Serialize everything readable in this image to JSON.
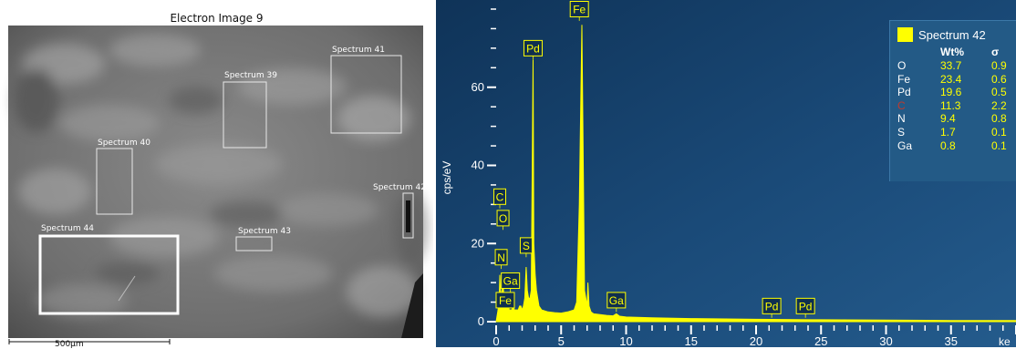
{
  "sem": {
    "title": "Electron Image 9",
    "scale_label": "500µm",
    "regions": [
      {
        "label": "Spectrum 41"
      },
      {
        "label": "Spectrum 39"
      },
      {
        "label": "Spectrum 40"
      },
      {
        "label": "Spectrum 42"
      },
      {
        "label": "Spectrum 44"
      },
      {
        "label": "Spectrum 43"
      }
    ]
  },
  "colors": {
    "spectrum": "#ffff00",
    "plot_background": "#1a4a78",
    "table_background": "#235a86",
    "marker_box": "#0f2f4f"
  },
  "chart_data": {
    "type": "line",
    "title": "",
    "xlabel": "ke",
    "ylabel": "cps/eV",
    "xlim": [
      0,
      40
    ],
    "ylim": [
      0,
      80
    ],
    "x_ticks": [
      0,
      5,
      10,
      15,
      20,
      25,
      30,
      35
    ],
    "y_ticks": [
      0,
      20,
      40,
      60
    ],
    "grid": false,
    "series": [
      {
        "name": "Spectrum 42",
        "x": [
          0.0,
          0.15,
          0.25,
          0.28,
          0.35,
          0.45,
          0.53,
          0.6,
          0.7,
          0.8,
          0.9,
          1.0,
          1.1,
          1.2,
          1.3,
          1.4,
          1.5,
          1.6,
          1.7,
          1.8,
          1.9,
          2.0,
          2.1,
          2.2,
          2.31,
          2.4,
          2.5,
          2.6,
          2.7,
          2.84,
          2.9,
          3.0,
          3.1,
          3.2,
          3.3,
          3.5,
          4.0,
          4.5,
          5.0,
          5.5,
          6.0,
          6.2,
          6.4,
          6.6,
          6.8,
          7.0,
          7.06,
          7.15,
          7.3,
          7.5,
          8.0,
          8.5,
          9.0,
          9.25,
          9.5,
          10.0,
          12.0,
          15.0,
          20.0,
          25.0,
          30.0,
          35.0,
          40.0
        ],
        "values": [
          0,
          3,
          8,
          12,
          6,
          8,
          10,
          6,
          5,
          4,
          5,
          3,
          3,
          3,
          4,
          3,
          3,
          3,
          3,
          4,
          4,
          3,
          4,
          6,
          14,
          8,
          6,
          6,
          8,
          67,
          20,
          12,
          8,
          6,
          4,
          3,
          2.5,
          2.3,
          2.2,
          2.5,
          3,
          5,
          30,
          76,
          8,
          4,
          10,
          4,
          2.5,
          2,
          1.8,
          1.6,
          1.5,
          2,
          1.4,
          1.2,
          1,
          0.8,
          0.6,
          0.5,
          0.4,
          0.3,
          0.3
        ]
      }
    ],
    "peak_labels": [
      {
        "text": "Fe",
        "x": 6.4,
        "level": 80
      },
      {
        "text": "Pd",
        "x": 2.84,
        "level": 70
      },
      {
        "text": "C",
        "x": 0.28,
        "level": 32
      },
      {
        "text": "O",
        "x": 0.53,
        "level": 26.5
      },
      {
        "text": "S",
        "x": 2.31,
        "level": 19.5
      },
      {
        "text": "N",
        "x": 0.39,
        "level": 16.5
      },
      {
        "text": "Ga",
        "x": 1.1,
        "level": 10.5
      },
      {
        "text": "Fe",
        "x": 0.7,
        "level": 5.5
      },
      {
        "text": "Ga",
        "x": 9.25,
        "level": 5.5
      },
      {
        "text": "Pd",
        "x": 21.2,
        "level": 4
      },
      {
        "text": "Pd",
        "x": 23.8,
        "level": 4
      }
    ]
  },
  "results": {
    "legend_label": "Spectrum 42",
    "headers": {
      "element": "",
      "wt": "Wt%",
      "sigma": "σ"
    },
    "rows": [
      {
        "el": "O",
        "wt": "33.7",
        "sigma": "0.9",
        "color": "#ffffff"
      },
      {
        "el": "Fe",
        "wt": "23.4",
        "sigma": "0.6",
        "color": "#ffffff"
      },
      {
        "el": "Pd",
        "wt": "19.6",
        "sigma": "0.5",
        "color": "#ffffff"
      },
      {
        "el": "C",
        "wt": "11.3",
        "sigma": "2.2",
        "color": "#c0392b"
      },
      {
        "el": "N",
        "wt": "9.4",
        "sigma": "0.8",
        "color": "#ffffff"
      },
      {
        "el": "S",
        "wt": "1.7",
        "sigma": "0.1",
        "color": "#ffffff"
      },
      {
        "el": "Ga",
        "wt": "0.8",
        "sigma": "0.1",
        "color": "#ffffff"
      }
    ]
  }
}
